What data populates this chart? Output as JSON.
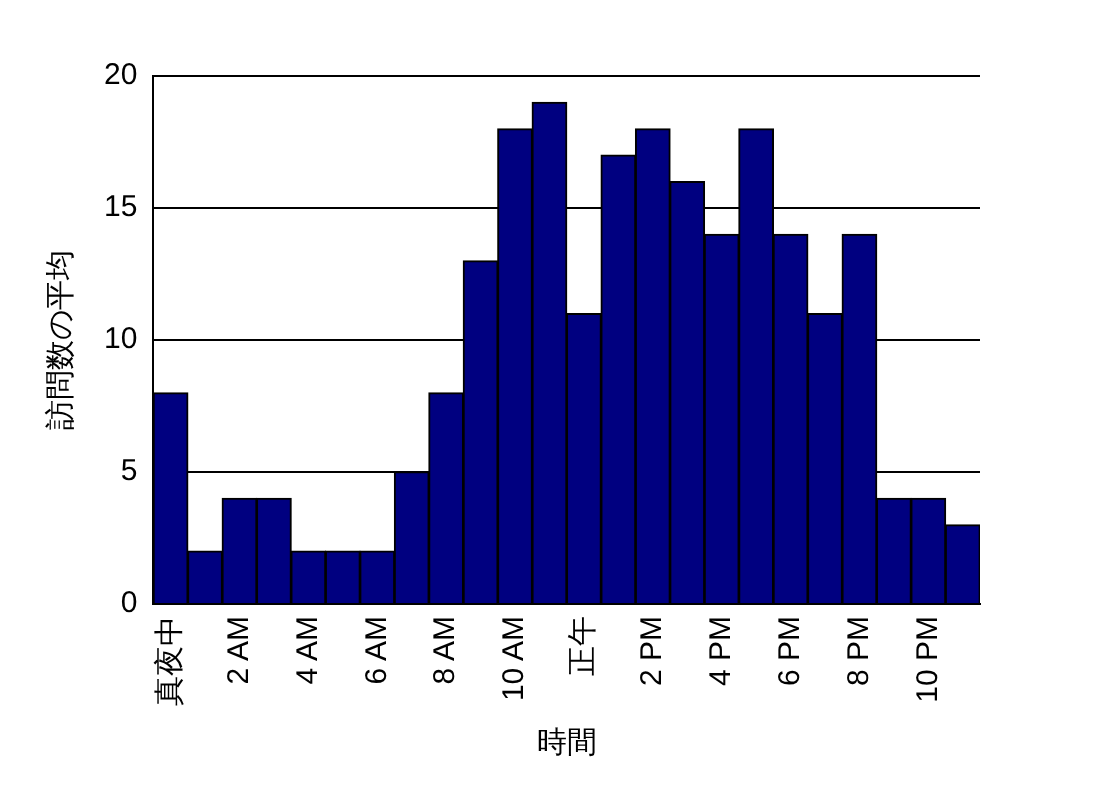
{
  "chart_data": {
    "type": "bar",
    "xlabel": "時間",
    "ylabel": "訪問数の平均",
    "categories": [
      "真夜中",
      null,
      "2 AM",
      null,
      "4 AM",
      null,
      "6 AM",
      null,
      "8 AM",
      null,
      "10 AM",
      null,
      "正午",
      null,
      "2 PM",
      null,
      "4 PM",
      null,
      "6 PM",
      null,
      "8 PM",
      null,
      "10 PM",
      null
    ],
    "values": [
      8,
      2,
      4,
      4,
      2,
      2,
      2,
      5,
      8,
      13,
      18,
      19,
      11,
      17,
      18,
      16,
      14,
      18,
      14,
      11,
      14,
      4,
      4,
      3
    ],
    "color": "#000080",
    "ylim": [
      0,
      20
    ],
    "yticks": [
      0,
      5,
      10,
      15,
      20
    ],
    "grid": "y",
    "legend": false
  }
}
